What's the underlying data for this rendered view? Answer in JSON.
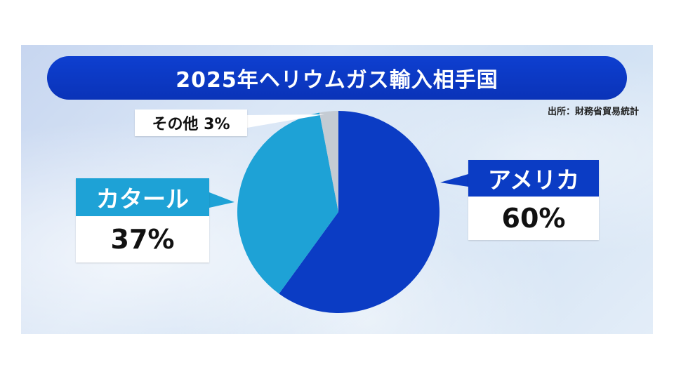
{
  "source": "出所：財務省貿易統計",
  "chart_data": {
    "type": "pie",
    "title": "2025年ヘリウムガス輸入相手国",
    "start_angle_deg": 0,
    "direction": "clockwise",
    "slices": [
      {
        "label": "アメリカ",
        "value": 60,
        "value_label": "60%",
        "color": "#0b3cc4"
      },
      {
        "label": "カタール",
        "value": 37,
        "value_label": "37%",
        "color": "#1ea2d6"
      },
      {
        "label": "その他",
        "value": 3,
        "value_label": "3%",
        "color": "#c4cbd3"
      }
    ],
    "other_label_text": "その他 3%"
  }
}
